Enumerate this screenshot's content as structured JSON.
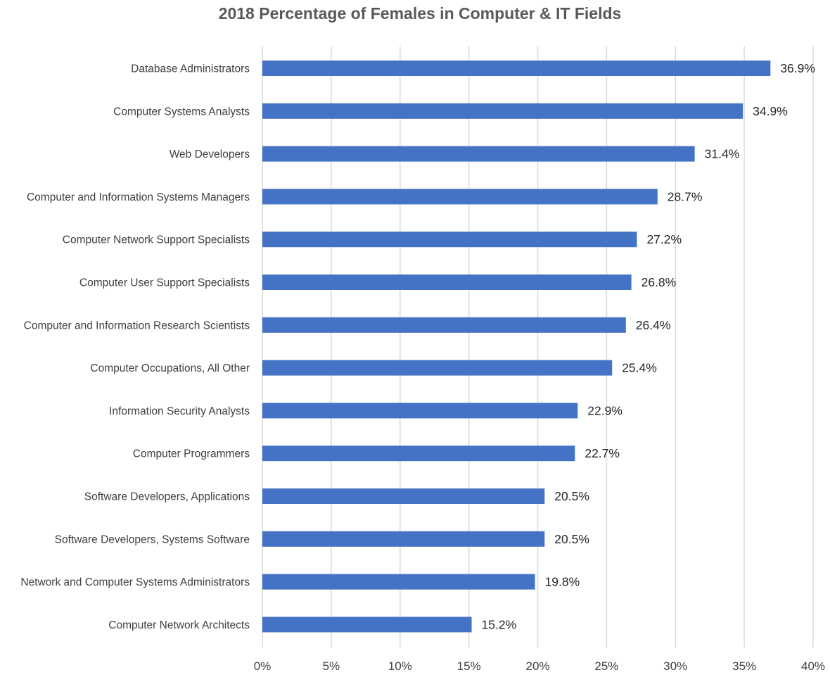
{
  "chart_data": {
    "type": "bar",
    "orientation": "horizontal",
    "title": "2018 Percentage of Females in Computer & IT Fields",
    "xlabel": "",
    "ylabel": "",
    "categories": [
      "Database Administrators",
      "Computer Systems Analysts",
      "Web Developers",
      "Computer and Information Systems Managers",
      "Computer Network Support Specialists",
      "Computer User Support Specialists",
      "Computer and Information Research Scientists",
      "Computer Occupations, All Other",
      "Information Security Analysts",
      "Computer Programmers",
      "Software Developers, Applications",
      "Software Developers, Systems Software",
      "Network and Computer Systems Administrators",
      "Computer Network Architects"
    ],
    "values": [
      36.9,
      34.9,
      31.4,
      28.7,
      27.2,
      26.8,
      26.4,
      25.4,
      22.9,
      22.7,
      20.5,
      20.5,
      19.8,
      15.2
    ],
    "data_labels": [
      "36.9%",
      "34.9%",
      "31.4%",
      "28.7%",
      "27.2%",
      "26.8%",
      "26.4%",
      "25.4%",
      "22.9%",
      "22.7%",
      "20.5%",
      "20.5%",
      "19.8%",
      "15.2%"
    ],
    "xlim": [
      0,
      40
    ],
    "x_ticks": [
      0,
      5,
      10,
      15,
      20,
      25,
      30,
      35,
      40
    ],
    "x_tick_labels": [
      "0%",
      "5%",
      "10%",
      "15%",
      "20%",
      "25%",
      "30%",
      "35%",
      "40%"
    ],
    "grid": "vertical",
    "legend": "none",
    "bar_color": "#4472c4",
    "gridline_color": "#d9d9d9"
  }
}
